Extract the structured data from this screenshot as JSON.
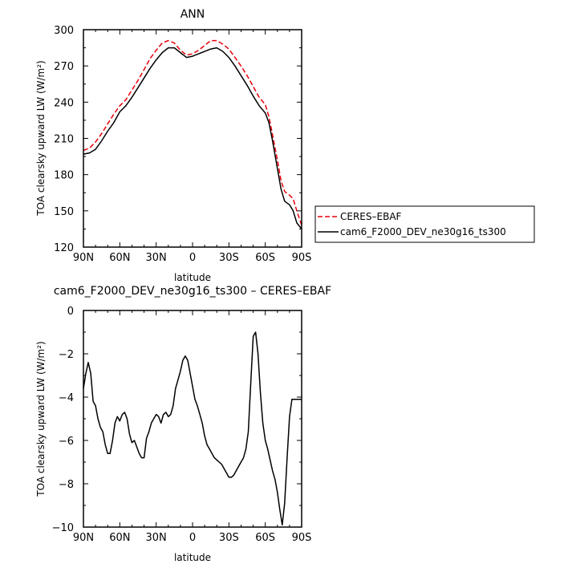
{
  "chart_data": [
    {
      "type": "line",
      "title": "ANN",
      "xlabel": "latitude",
      "ylabel": "TOA clearsky upward LW (W/m²)",
      "xlim": [
        90,
        -90
      ],
      "ylim": [
        120,
        300
      ],
      "xticks": [
        90,
        60,
        30,
        0,
        -30,
        -60,
        -90
      ],
      "xtick_labels": [
        "90N",
        "60N",
        "30N",
        "0",
        "30S",
        "60S",
        "90S"
      ],
      "yticks": [
        120,
        150,
        180,
        210,
        240,
        270,
        300
      ],
      "ytick_labels": [
        "120",
        "150",
        "180",
        "210",
        "240",
        "270",
        "300"
      ],
      "legend_position": "outside-right",
      "series": [
        {
          "name": "CERES–EBAF",
          "color": "#e8000b",
          "dash": "dashed",
          "x": [
            90,
            85,
            80,
            75,
            70,
            65,
            60,
            55,
            50,
            45,
            40,
            35,
            30,
            25,
            20,
            15,
            10,
            5,
            0,
            -5,
            -10,
            -15,
            -20,
            -25,
            -30,
            -35,
            -40,
            -45,
            -50,
            -55,
            -60,
            -63,
            -66,
            -70,
            -73,
            -76,
            -80,
            -83,
            -86,
            -90
          ],
          "y": [
            200,
            202,
            207,
            214,
            222,
            230,
            237,
            242,
            250,
            258,
            267,
            276,
            283,
            289,
            291,
            289,
            283,
            279,
            280,
            283,
            287,
            291,
            291,
            288,
            284,
            277,
            270,
            262,
            253,
            244,
            238,
            228,
            213,
            192,
            175,
            166,
            163,
            160,
            150,
            138
          ]
        },
        {
          "name": "cam6_F2000_DEV_ne30g16_ts300",
          "color": "#000000",
          "dash": "solid",
          "x": [
            90,
            85,
            80,
            75,
            70,
            65,
            60,
            55,
            50,
            45,
            40,
            35,
            30,
            25,
            20,
            15,
            10,
            5,
            0,
            -5,
            -10,
            -15,
            -20,
            -25,
            -30,
            -35,
            -40,
            -45,
            -50,
            -55,
            -60,
            -63,
            -66,
            -70,
            -73,
            -76,
            -80,
            -83,
            -86,
            -90
          ],
          "y": [
            197,
            198,
            201,
            208,
            216,
            223,
            232,
            237,
            244,
            252,
            260,
            268,
            275,
            281,
            285,
            285,
            281,
            277,
            278,
            280,
            282,
            284,
            285,
            282,
            277,
            270,
            262,
            254,
            245,
            237,
            231,
            223,
            208,
            185,
            168,
            158,
            155,
            150,
            140,
            135
          ]
        }
      ]
    },
    {
      "type": "line",
      "title": "cam6_F2000_DEV_ne30g16_ts300 – CERES–EBAF",
      "xlabel": "latitude",
      "ylabel": "TOA clearsky upward LW (W/m²)",
      "xlim": [
        90,
        -90
      ],
      "ylim": [
        -10,
        0
      ],
      "xticks": [
        90,
        60,
        30,
        0,
        -30,
        -60,
        -90
      ],
      "xtick_labels": [
        "90N",
        "60N",
        "30N",
        "0",
        "30S",
        "60S",
        "90S"
      ],
      "yticks": [
        -10,
        -8,
        -6,
        -4,
        -2,
        0
      ],
      "ytick_labels": [
        "−10",
        "−8",
        "−6",
        "−4",
        "−2",
        "0"
      ],
      "series": [
        {
          "name": "",
          "color": "#000000",
          "dash": "solid",
          "x": [
            90,
            88,
            86,
            84,
            82,
            80,
            78,
            76,
            74,
            72,
            70,
            68,
            66,
            64,
            62,
            60,
            58,
            56,
            54,
            52,
            50,
            48,
            46,
            44,
            42,
            40,
            38,
            36,
            34,
            32,
            30,
            28,
            26,
            24,
            22,
            20,
            18,
            16,
            14,
            12,
            10,
            8,
            6,
            4,
            2,
            0,
            -2,
            -4,
            -6,
            -8,
            -10,
            -12,
            -14,
            -16,
            -18,
            -20,
            -22,
            -24,
            -26,
            -28,
            -30,
            -32,
            -34,
            -36,
            -38,
            -40,
            -42,
            -44,
            -46,
            -48,
            -50,
            -52,
            -54,
            -56,
            -58,
            -60,
            -62,
            -64,
            -66,
            -68,
            -70,
            -72,
            -74,
            -76,
            -78,
            -80,
            -82,
            -84,
            -86,
            -88,
            -90
          ],
          "y": [
            -3.6,
            -2.9,
            -2.4,
            -2.9,
            -4.2,
            -4.4,
            -5.0,
            -5.4,
            -5.6,
            -6.2,
            -6.6,
            -6.6,
            -6.0,
            -5.2,
            -4.9,
            -5.1,
            -4.8,
            -4.7,
            -5.0,
            -5.7,
            -6.1,
            -6.0,
            -6.3,
            -6.6,
            -6.8,
            -6.8,
            -5.9,
            -5.6,
            -5.2,
            -5.0,
            -4.8,
            -4.9,
            -5.2,
            -4.8,
            -4.7,
            -4.9,
            -4.8,
            -4.4,
            -3.6,
            -3.2,
            -2.8,
            -2.3,
            -2.1,
            -2.3,
            -2.9,
            -3.5,
            -4.1,
            -4.4,
            -4.8,
            -5.2,
            -5.8,
            -6.2,
            -6.4,
            -6.6,
            -6.8,
            -6.9,
            -7.0,
            -7.1,
            -7.3,
            -7.5,
            -7.7,
            -7.7,
            -7.6,
            -7.4,
            -7.2,
            -7.0,
            -6.8,
            -6.4,
            -5.6,
            -3.4,
            -1.2,
            -1.0,
            -2.0,
            -3.8,
            -5.2,
            -6.0,
            -6.4,
            -6.9,
            -7.4,
            -7.8,
            -8.4,
            -9.2,
            -9.9,
            -8.9,
            -6.8,
            -4.9,
            -4.1,
            -4.1,
            -4.1,
            -4.1,
            -4.1
          ]
        }
      ]
    }
  ]
}
